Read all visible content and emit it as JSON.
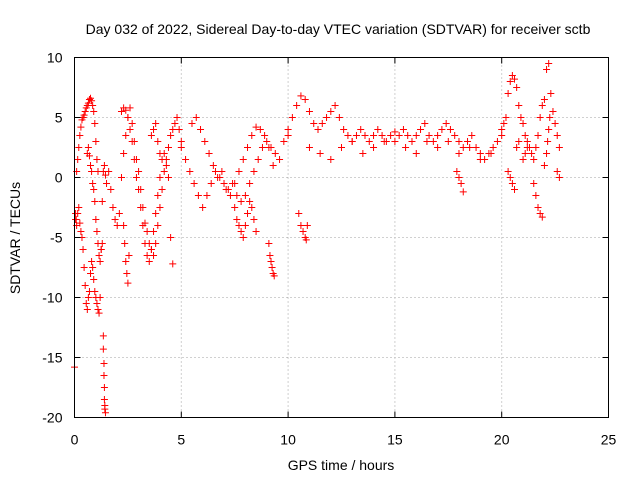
{
  "chart_data": {
    "type": "scatter",
    "title": "Day 032 of 2022, Sidereal Day-to-day VTEC variation (SDTVAR) for receiver sctb",
    "xlabel": "GPS time / hours",
    "ylabel": "SDTVAR / TECUs",
    "xlim": [
      0,
      25
    ],
    "ylim": [
      -20,
      10
    ],
    "xticks": [
      0,
      5,
      10,
      15,
      20,
      25
    ],
    "yticks": [
      -20,
      -15,
      -10,
      -5,
      0,
      5,
      10
    ],
    "xtick_labels": [
      "0",
      "5",
      "10",
      "15",
      "20",
      "25"
    ],
    "ytick_labels": [
      "-20",
      "-15",
      "-10",
      "-5",
      "0",
      "5",
      "10"
    ],
    "grid": true,
    "marker": "+",
    "series": [
      {
        "name": "SDTVAR",
        "color": "#ff0000",
        "x": [
          0.0,
          0.05,
          0.1,
          0.15,
          0.2,
          0.25,
          0.3,
          0.35,
          0.4,
          0.45,
          0.5,
          0.55,
          0.6,
          0.65,
          0.7,
          0.75,
          0.8,
          0.85,
          0.9,
          0.95,
          1.0,
          1.05,
          1.1,
          1.15,
          1.2,
          1.25,
          1.3,
          1.35,
          1.4,
          1.45,
          1.5,
          0.1,
          0.15,
          0.2,
          0.25,
          0.3,
          0.35,
          0.4,
          0.45,
          0.5,
          0.55,
          0.6,
          0.65,
          0.7,
          0.75,
          0.8,
          0.85,
          0.9,
          0.95,
          1.0,
          1.05,
          1.1,
          0.6,
          0.65,
          0.7,
          0.75,
          0.8,
          0.85,
          0.9,
          0.95,
          1.0,
          1.05,
          1.1,
          1.15,
          1.2,
          1.25,
          1.3,
          1.35,
          1.35,
          1.38,
          1.38,
          1.4,
          1.4,
          1.42,
          1.42,
          1.45,
          0.05,
          0.08,
          1.6,
          1.7,
          1.8,
          1.9,
          2.0,
          2.1,
          2.2,
          2.3,
          2.4,
          2.5,
          2.6,
          2.7,
          2.8,
          2.9,
          3.0,
          3.1,
          3.2,
          3.3,
          3.4,
          3.5,
          3.6,
          3.7,
          3.8,
          3.9,
          4.0,
          4.1,
          4.2,
          4.3,
          4.4,
          4.5,
          4.6,
          4.7,
          4.8,
          4.9,
          5.0,
          2.2,
          2.3,
          2.4,
          2.5,
          2.6,
          2.7,
          2.8,
          2.9,
          3.0,
          3.1,
          3.2,
          3.3,
          3.4,
          3.5,
          3.6,
          3.7,
          3.8,
          3.9,
          4.0,
          4.1,
          4.2,
          4.3,
          4.4,
          2.3,
          2.35,
          2.4,
          2.45,
          2.5,
          2.55,
          3.6,
          3.7,
          3.8,
          3.9,
          4.0,
          4.5,
          4.6,
          5.0,
          5.2,
          5.4,
          5.6,
          5.8,
          6.0,
          6.2,
          6.4,
          6.6,
          6.8,
          7.0,
          7.2,
          7.4,
          7.6,
          7.8,
          8.0,
          8.2,
          8.4,
          8.6,
          8.8,
          9.0,
          9.2,
          9.4,
          9.6,
          9.8,
          10.0,
          5.5,
          5.7,
          5.9,
          6.1,
          6.3,
          6.5,
          6.7,
          6.9,
          7.1,
          7.3,
          7.5,
          7.7,
          7.9,
          8.1,
          8.3,
          8.5,
          8.7,
          8.9,
          9.1,
          9.3,
          7.5,
          7.6,
          7.7,
          7.8,
          7.9,
          8.0,
          8.1,
          8.2,
          8.3,
          8.4,
          8.5,
          9.1,
          9.15,
          9.2,
          9.25,
          9.3,
          9.35,
          10.0,
          10.2,
          10.4,
          10.6,
          10.8,
          11.0,
          11.2,
          11.4,
          11.6,
          11.8,
          12.0,
          12.2,
          12.4,
          12.6,
          12.8,
          13.0,
          13.2,
          13.4,
          13.6,
          13.8,
          14.0,
          14.2,
          14.4,
          14.6,
          14.8,
          15.0,
          10.5,
          10.6,
          10.7,
          10.8,
          10.85,
          10.9,
          11.0,
          11.5,
          12.0,
          12.5,
          13.0,
          13.5,
          14.0,
          14.5,
          15.0,
          15.2,
          15.4,
          15.6,
          15.8,
          16.0,
          16.2,
          16.4,
          16.6,
          16.8,
          17.0,
          17.2,
          17.4,
          17.6,
          17.8,
          18.0,
          18.2,
          18.4,
          18.6,
          18.8,
          19.0,
          19.2,
          19.4,
          19.6,
          19.8,
          20.0,
          15.5,
          16.0,
          16.5,
          17.0,
          17.5,
          18.0,
          18.5,
          19.0,
          19.5,
          17.9,
          18.0,
          18.1,
          18.2,
          20.0,
          20.1,
          20.2,
          20.3,
          20.4,
          20.5,
          20.6,
          20.7,
          20.8,
          20.9,
          21.0,
          21.1,
          21.2,
          21.3,
          21.4,
          21.5,
          21.6,
          21.7,
          21.8,
          21.9,
          22.0,
          22.1,
          22.2,
          22.3,
          22.4,
          22.5,
          22.6,
          22.7,
          20.3,
          20.4,
          20.5,
          20.6,
          20.7,
          20.8,
          21.5,
          21.6,
          21.7,
          21.8,
          21.9,
          22.0,
          22.1,
          22.15,
          22.2,
          22.25,
          21.0,
          21.1,
          21.2,
          22.6,
          22.7
        ],
        "y": [
          -15.8,
          -3.5,
          -4.0,
          -3.0,
          -2.5,
          -3.8,
          -4.5,
          -5.0,
          -6.0,
          -7.5,
          -9.0,
          -10.5,
          -11.0,
          -10.0,
          -9.5,
          -8.0,
          -7.0,
          -7.5,
          -8.5,
          -9.5,
          -10.0,
          -10.5,
          -11.0,
          -11.3,
          -10.0,
          -6.0,
          -2.0,
          0.5,
          1.0,
          0.2,
          -0.5,
          0.5,
          1.5,
          2.5,
          3.5,
          4.2,
          4.8,
          5.0,
          5.2,
          5.5,
          5.8,
          6.0,
          6.2,
          6.5,
          6.6,
          6.4,
          6.0,
          5.5,
          4.5,
          3.0,
          1.5,
          0.5,
          2.0,
          2.5,
          1.8,
          1.0,
          0.5,
          -0.5,
          -1.0,
          -2.0,
          -3.5,
          -4.5,
          -5.5,
          -6.5,
          -7.0,
          -6.0,
          -5.5,
          -13.2,
          -14.3,
          -15.5,
          -16.5,
          -17.5,
          -18.5,
          -19.0,
          -19.3,
          -19.6,
          -3.0,
          -3.5,
          0.5,
          -1.0,
          -2.5,
          -3.5,
          -4.0,
          -3.0,
          0.0,
          2.0,
          3.5,
          5.0,
          5.8,
          4.5,
          3.0,
          1.5,
          0.5,
          -1.0,
          -2.5,
          -3.8,
          -4.5,
          -5.5,
          -6.0,
          -6.5,
          -5.5,
          -4.0,
          -2.5,
          -1.0,
          0.5,
          1.5,
          2.5,
          3.5,
          4.0,
          4.5,
          5.0,
          4.0,
          3.0,
          5.5,
          5.8,
          5.6,
          5.0,
          4.0,
          3.0,
          1.5,
          0.0,
          -1.0,
          -2.5,
          -4.0,
          -5.5,
          -6.5,
          -7.0,
          -6.0,
          -4.5,
          -3.0,
          -1.5,
          0.0,
          1.5,
          2.0,
          1.0,
          0.0,
          -4.0,
          -5.5,
          -7.0,
          -8.0,
          -8.8,
          -6.5,
          3.5,
          4.0,
          4.5,
          3.0,
          2.0,
          -5.0,
          -7.2,
          2.5,
          1.5,
          0.5,
          -0.5,
          -1.5,
          -2.5,
          -1.5,
          -0.5,
          0.5,
          0.0,
          -0.5,
          -1.0,
          -0.5,
          -1.5,
          -2.0,
          -1.5,
          -0.5,
          0.5,
          1.5,
          2.5,
          3.0,
          2.5,
          2.0,
          1.5,
          3.0,
          4.0,
          4.5,
          5.0,
          4.0,
          3.0,
          2.0,
          1.0,
          0.0,
          0.5,
          -1.0,
          -1.5,
          -0.5,
          0.5,
          1.5,
          2.5,
          3.5,
          4.2,
          4.0,
          3.5,
          2.5,
          1.0,
          -2.5,
          -3.5,
          -4.0,
          -4.5,
          -5.0,
          -4.0,
          -3.0,
          -2.0,
          -2.5,
          -3.5,
          -4.5,
          -5.5,
          -6.5,
          -7.0,
          -7.5,
          -8.0,
          -8.2,
          3.5,
          5.0,
          6.0,
          6.8,
          6.5,
          5.5,
          4.5,
          4.0,
          4.5,
          5.0,
          5.5,
          6.0,
          5.0,
          4.0,
          3.5,
          3.0,
          3.5,
          4.0,
          3.5,
          3.0,
          3.5,
          4.0,
          3.5,
          3.0,
          3.5,
          3.8,
          -3.0,
          -4.0,
          -4.5,
          -5.0,
          -5.2,
          -4.0,
          2.5,
          2.0,
          1.5,
          2.5,
          3.0,
          2.0,
          2.5,
          3.0,
          3.0,
          3.5,
          4.0,
          3.5,
          3.0,
          3.5,
          4.0,
          4.5,
          3.5,
          3.0,
          3.5,
          4.0,
          4.5,
          4.0,
          3.5,
          3.0,
          2.5,
          3.0,
          3.5,
          2.5,
          2.0,
          1.5,
          2.0,
          2.5,
          3.0,
          3.5,
          2.5,
          2.0,
          3.0,
          2.5,
          3.0,
          2.0,
          2.5,
          1.5,
          2.0,
          0.5,
          0.0,
          -0.5,
          -1.2,
          4.0,
          4.5,
          5.0,
          7.0,
          8.0,
          8.5,
          8.2,
          7.5,
          6.0,
          5.0,
          4.5,
          3.5,
          3.0,
          2.5,
          2.0,
          1.5,
          2.5,
          3.5,
          5.0,
          6.0,
          6.5,
          9.0,
          9.5,
          7.0,
          5.5,
          4.5,
          3.5,
          2.5,
          0.5,
          0.0,
          -0.5,
          -1.0,
          2.5,
          3.0,
          -0.5,
          -1.5,
          -2.5,
          -3.0,
          -3.3,
          1.0,
          2.0,
          3.0,
          4.0,
          5.0,
          1.5,
          2.0,
          2.5,
          0.5,
          0.0
        ]
      }
    ]
  }
}
